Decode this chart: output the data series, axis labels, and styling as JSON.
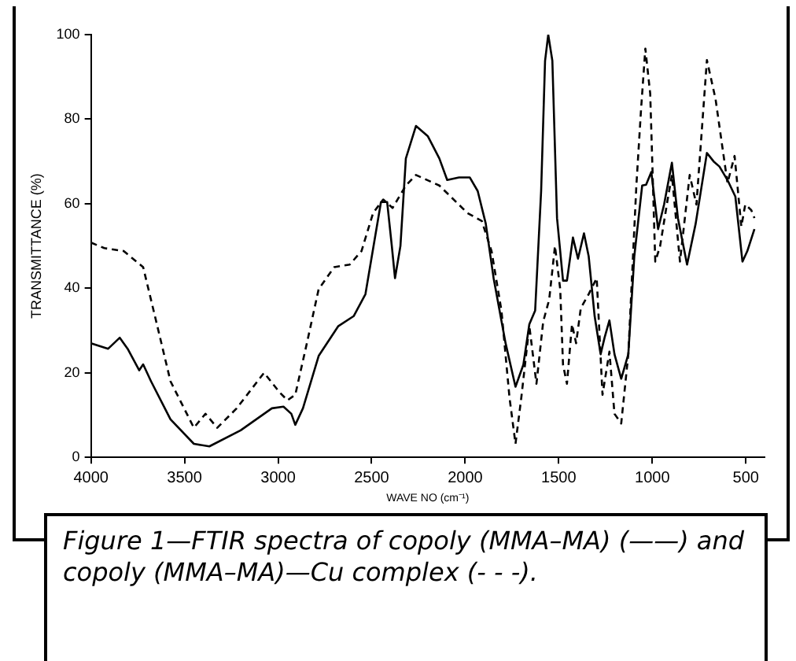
{
  "chart_data": {
    "type": "line",
    "xlabel": "WAVE NO (cm⁻¹)",
    "ylabel": "TRANSMITTANCE (%)",
    "xlim": [
      4000,
      400
    ],
    "xticks": [
      4000,
      3500,
      3000,
      2500,
      2000,
      1500,
      1000,
      500
    ],
    "ylim": [
      0,
      100
    ],
    "yticks": [
      0,
      20,
      40,
      60,
      80,
      100
    ],
    "grid": false,
    "legend": false,
    "marker": "none",
    "annotations": [
      "Figure 1—FTIR spectra of copoly (MMA–MA) (——) and copoly (MMA–MA)—Cu complex (- - -)."
    ],
    "series": [
      {
        "color": "#000000",
        "line_style": "solid",
        "x": [
          4000,
          3908,
          3846,
          3804,
          3742,
          3721,
          3679,
          3575,
          3450,
          3367,
          3200,
          3033,
          2971,
          2929,
          2908,
          2867,
          2783,
          2679,
          2596,
          2533,
          2450,
          2417,
          2392,
          2375,
          2346,
          2317,
          2263,
          2200,
          2138,
          2096,
          2033,
          1975,
          1933,
          1890,
          1848,
          1784,
          1731,
          1689,
          1657,
          1626,
          1594,
          1573,
          1556,
          1534,
          1509,
          1477,
          1456,
          1424,
          1397,
          1365,
          1340,
          1308,
          1276,
          1255,
          1229,
          1202,
          1166,
          1128,
          1096,
          1054,
          1033,
          1005,
          969,
          937,
          895,
          863,
          814,
          768,
          708,
          672,
          641,
          598,
          556,
          518,
          492,
          454
        ],
        "values": [
          27,
          25.7,
          28.3,
          25.7,
          20.6,
          22,
          18,
          9,
          3.2,
          2.6,
          6.4,
          11.6,
          12,
          10.3,
          7.7,
          11.6,
          24,
          31,
          33.4,
          38.6,
          60.4,
          60.4,
          50,
          42.4,
          50,
          70.7,
          78.4,
          76,
          70.7,
          65.6,
          66.2,
          66.2,
          63,
          55.3,
          42.4,
          27,
          16.7,
          21.9,
          31.5,
          34.7,
          63,
          93.8,
          100,
          93.8,
          56.6,
          41.8,
          41.8,
          52,
          47,
          53,
          47.6,
          33.4,
          24.4,
          28.3,
          32.4,
          24.4,
          18.6,
          24.4,
          47.6,
          64.3,
          64.5,
          67.5,
          54,
          59.8,
          69.7,
          56.6,
          45.6,
          55.3,
          72,
          70,
          68.8,
          65.6,
          61.7,
          46.3,
          48.8,
          54
        ]
      },
      {
        "color": "#000000",
        "line_style": "dashed",
        "x": [
          4000,
          3929,
          3825,
          3721,
          3658,
          3575,
          3450,
          3388,
          3325,
          3221,
          3075,
          2992,
          2950,
          2908,
          2846,
          2783,
          2700,
          2617,
          2554,
          2492,
          2438,
          2388,
          2317,
          2263,
          2138,
          1988,
          1911,
          1859,
          1806,
          1763,
          1731,
          1700,
          1657,
          1619,
          1583,
          1551,
          1520,
          1492,
          1477,
          1456,
          1429,
          1407,
          1382,
          1340,
          1297,
          1266,
          1229,
          1202,
          1166,
          1128,
          1085,
          1060,
          1037,
          1011,
          984,
          958,
          920,
          895,
          852,
          800,
          764,
          708,
          662,
          598,
          560,
          524,
          503,
          471,
          454
        ],
        "values": [
          50.8,
          49.5,
          48.8,
          45,
          33.4,
          18,
          7,
          10.3,
          7,
          11.6,
          20,
          15.4,
          13.5,
          14.8,
          27,
          39.8,
          45,
          45.6,
          48.8,
          57.8,
          61,
          59,
          64.3,
          66.8,
          64.3,
          57.8,
          55.9,
          48.8,
          34.7,
          14.1,
          3.2,
          14.1,
          31.1,
          17.4,
          32.1,
          37.3,
          50,
          39.8,
          21.9,
          17.4,
          31.5,
          27,
          35.3,
          38.6,
          42.4,
          14.8,
          25,
          10.3,
          8,
          24.4,
          64.3,
          82.3,
          96.7,
          86,
          46.3,
          50,
          60.4,
          66.8,
          46.3,
          66.8,
          59.8,
          94,
          84.8,
          64.9,
          71.3,
          54.6,
          59.8,
          58.5,
          56.6
        ]
      }
    ]
  }
}
